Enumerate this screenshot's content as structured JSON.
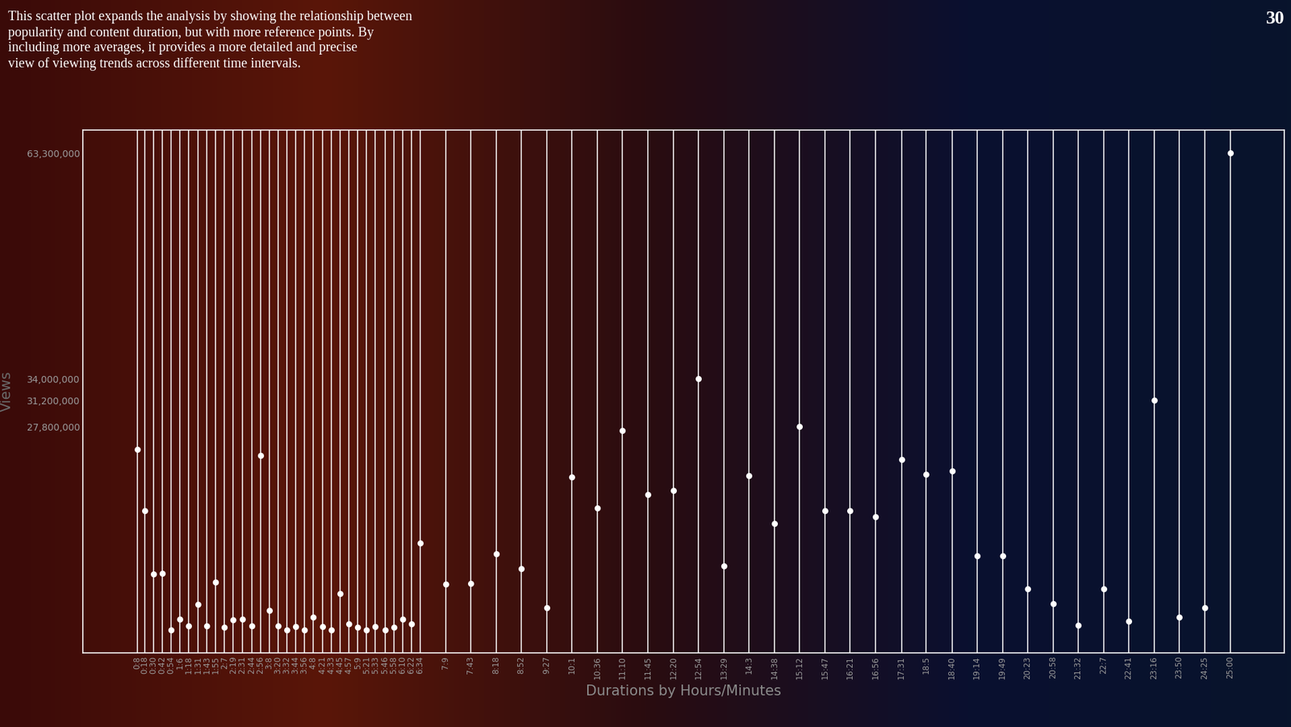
{
  "chart_data": {
    "type": "scatter",
    "description": "This scatter plot expands the analysis by showing the relationship between\npopularity and content duration, but with more reference points. By\nincluding more averages, it provides a more detailed and precise\nview of viewing trends across different time intervals.",
    "page_number": "30",
    "x_label": "Durations by Hours/Minutes",
    "y_label": "Views",
    "color": "#ffffff",
    "marker": "o",
    "grid": "x",
    "x": [
      8,
      18,
      30,
      42,
      54,
      66,
      78,
      91,
      103,
      115,
      127,
      139,
      151,
      164,
      176,
      188,
      200,
      212,
      224,
      236,
      248,
      261,
      273,
      285,
      297,
      309,
      321,
      333,
      346,
      358,
      370,
      382,
      394,
      429,
      463,
      498,
      532,
      567,
      601,
      636,
      670,
      705,
      740,
      774,
      809,
      843,
      878,
      912,
      947,
      981,
      1016,
      1051,
      1085,
      1120,
      1154,
      1189,
      1223,
      1258,
      1292,
      1327,
      1361,
      1396,
      1430,
      1465,
      1500
    ],
    "values": [
      24800000,
      16900000,
      8600000,
      8700000,
      1400000,
      2800000,
      1900000,
      4700000,
      1900000,
      7600000,
      1700000,
      2700000,
      2800000,
      1900000,
      24000000,
      3900000,
      1900000,
      1400000,
      1800000,
      1400000,
      3000000,
      1800000,
      1400000,
      6100000,
      2200000,
      1700000,
      1400000,
      1800000,
      1400000,
      1700000,
      2800000,
      2200000,
      12700000,
      7300000,
      7400000,
      11300000,
      9300000,
      4300000,
      21200000,
      17200000,
      27300000,
      19000000,
      19500000,
      34000000,
      9700000,
      21400000,
      15200000,
      27800000,
      16900000,
      16900000,
      16100000,
      23500000,
      21600000,
      22000000,
      11000000,
      11000000,
      6700000,
      4800000,
      2000000,
      6700000,
      2500000,
      31200000,
      3000000,
      4300000,
      63300000
    ],
    "xlim": [
      -66,
      1574
    ],
    "ylim": [
      -1600000,
      66300000
    ],
    "xticks": [
      {
        "value": 8,
        "label": "0:8"
      },
      {
        "value": 18,
        "label": "0:18"
      },
      {
        "value": 30,
        "label": "0:30"
      },
      {
        "value": 42,
        "label": "0:42"
      },
      {
        "value": 54,
        "label": "0:54"
      },
      {
        "value": 66,
        "label": "1:6"
      },
      {
        "value": 78,
        "label": "1:18"
      },
      {
        "value": 91,
        "label": "1:31"
      },
      {
        "value": 103,
        "label": "1:43"
      },
      {
        "value": 115,
        "label": "1:55"
      },
      {
        "value": 127,
        "label": "2:7"
      },
      {
        "value": 139,
        "label": "2:19"
      },
      {
        "value": 151,
        "label": "2:31"
      },
      {
        "value": 164,
        "label": "2:44"
      },
      {
        "value": 176,
        "label": "2:56"
      },
      {
        "value": 188,
        "label": "3:8"
      },
      {
        "value": 200,
        "label": "3:20"
      },
      {
        "value": 212,
        "label": "3:32"
      },
      {
        "value": 224,
        "label": "3:44"
      },
      {
        "value": 236,
        "label": "3:56"
      },
      {
        "value": 248,
        "label": "4:8"
      },
      {
        "value": 261,
        "label": "4:21"
      },
      {
        "value": 273,
        "label": "4:33"
      },
      {
        "value": 285,
        "label": "4:45"
      },
      {
        "value": 297,
        "label": "4:57"
      },
      {
        "value": 309,
        "label": "5:9"
      },
      {
        "value": 321,
        "label": "5:21"
      },
      {
        "value": 333,
        "label": "5:33"
      },
      {
        "value": 346,
        "label": "5:46"
      },
      {
        "value": 358,
        "label": "5:58"
      },
      {
        "value": 370,
        "label": "6:10"
      },
      {
        "value": 382,
        "label": "6:22"
      },
      {
        "value": 394,
        "label": "6:34"
      },
      {
        "value": 429,
        "label": "7:9"
      },
      {
        "value": 463,
        "label": "7:43"
      },
      {
        "value": 498,
        "label": "8:18"
      },
      {
        "value": 532,
        "label": "8:52"
      },
      {
        "value": 567,
        "label": "9:27"
      },
      {
        "value": 601,
        "label": "10:1"
      },
      {
        "value": 636,
        "label": "10:36"
      },
      {
        "value": 670,
        "label": "11:10"
      },
      {
        "value": 705,
        "label": "11:45"
      },
      {
        "value": 740,
        "label": "12:20"
      },
      {
        "value": 774,
        "label": "12:54"
      },
      {
        "value": 809,
        "label": "13:29"
      },
      {
        "value": 843,
        "label": "14:3"
      },
      {
        "value": 878,
        "label": "14:38"
      },
      {
        "value": 912,
        "label": "15:12"
      },
      {
        "value": 947,
        "label": "15:47"
      },
      {
        "value": 981,
        "label": "16:21"
      },
      {
        "value": 1016,
        "label": "16:56"
      },
      {
        "value": 1051,
        "label": "17:31"
      },
      {
        "value": 1085,
        "label": "18:5"
      },
      {
        "value": 1120,
        "label": "18:40"
      },
      {
        "value": 1154,
        "label": "19:14"
      },
      {
        "value": 1189,
        "label": "19:49"
      },
      {
        "value": 1223,
        "label": "20:23"
      },
      {
        "value": 1258,
        "label": "20:58"
      },
      {
        "value": 1292,
        "label": "21:32"
      },
      {
        "value": 1327,
        "label": "22:7"
      },
      {
        "value": 1361,
        "label": "22:41"
      },
      {
        "value": 1396,
        "label": "23:16"
      },
      {
        "value": 1430,
        "label": "23:50"
      },
      {
        "value": 1465,
        "label": "24:25"
      },
      {
        "value": 1500,
        "label": "25:00"
      }
    ],
    "yticks": [
      {
        "value": 27800000,
        "label": "27,800,000"
      },
      {
        "value": 31200000,
        "label": "31,200,000"
      },
      {
        "value": 34000000,
        "label": "34,000,000"
      },
      {
        "value": 63300000,
        "label": "63,300,000"
      }
    ]
  }
}
